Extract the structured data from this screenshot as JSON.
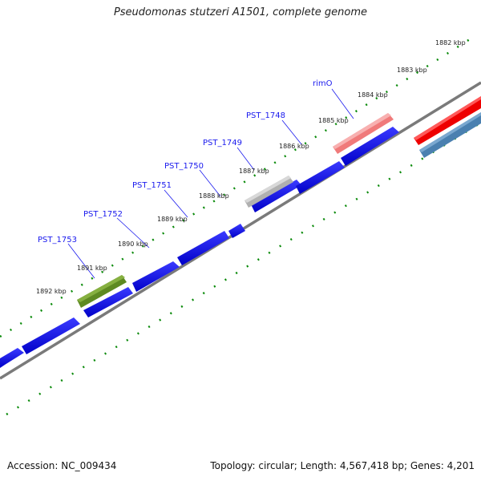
{
  "title": "Pseudomonas stutzeri A1501, complete genome",
  "footer": {
    "accession": "Accession: NC_009434",
    "summary": "Topology: circular; Length: 4,567,418 bp; Genes: 4,201"
  },
  "kbp_labels": [
    "1882 kbp",
    "1883 kbp",
    "1884 kbp",
    "1885 kbp",
    "1886 kbp",
    "1887 kbp",
    "1888 kbp",
    "1889 kbp",
    "1890 kbp",
    "1891 kbp",
    "1892 kbp"
  ],
  "gene_labels": [
    "rimO",
    "PST_1748",
    "PST_1749",
    "PST_1750",
    "PST_1751",
    "PST_1752",
    "PST_1753"
  ],
  "colors": {
    "cds": "#0000ee",
    "rimO": "#f07a7a",
    "grey_gene": "#b0b0b0",
    "green_gene": "#5e8a22",
    "red_gene": "#ee0000",
    "steel_gene": "#4a80b0",
    "ticks": "#0a8a0a",
    "backbone": "#7a7a7a"
  }
}
